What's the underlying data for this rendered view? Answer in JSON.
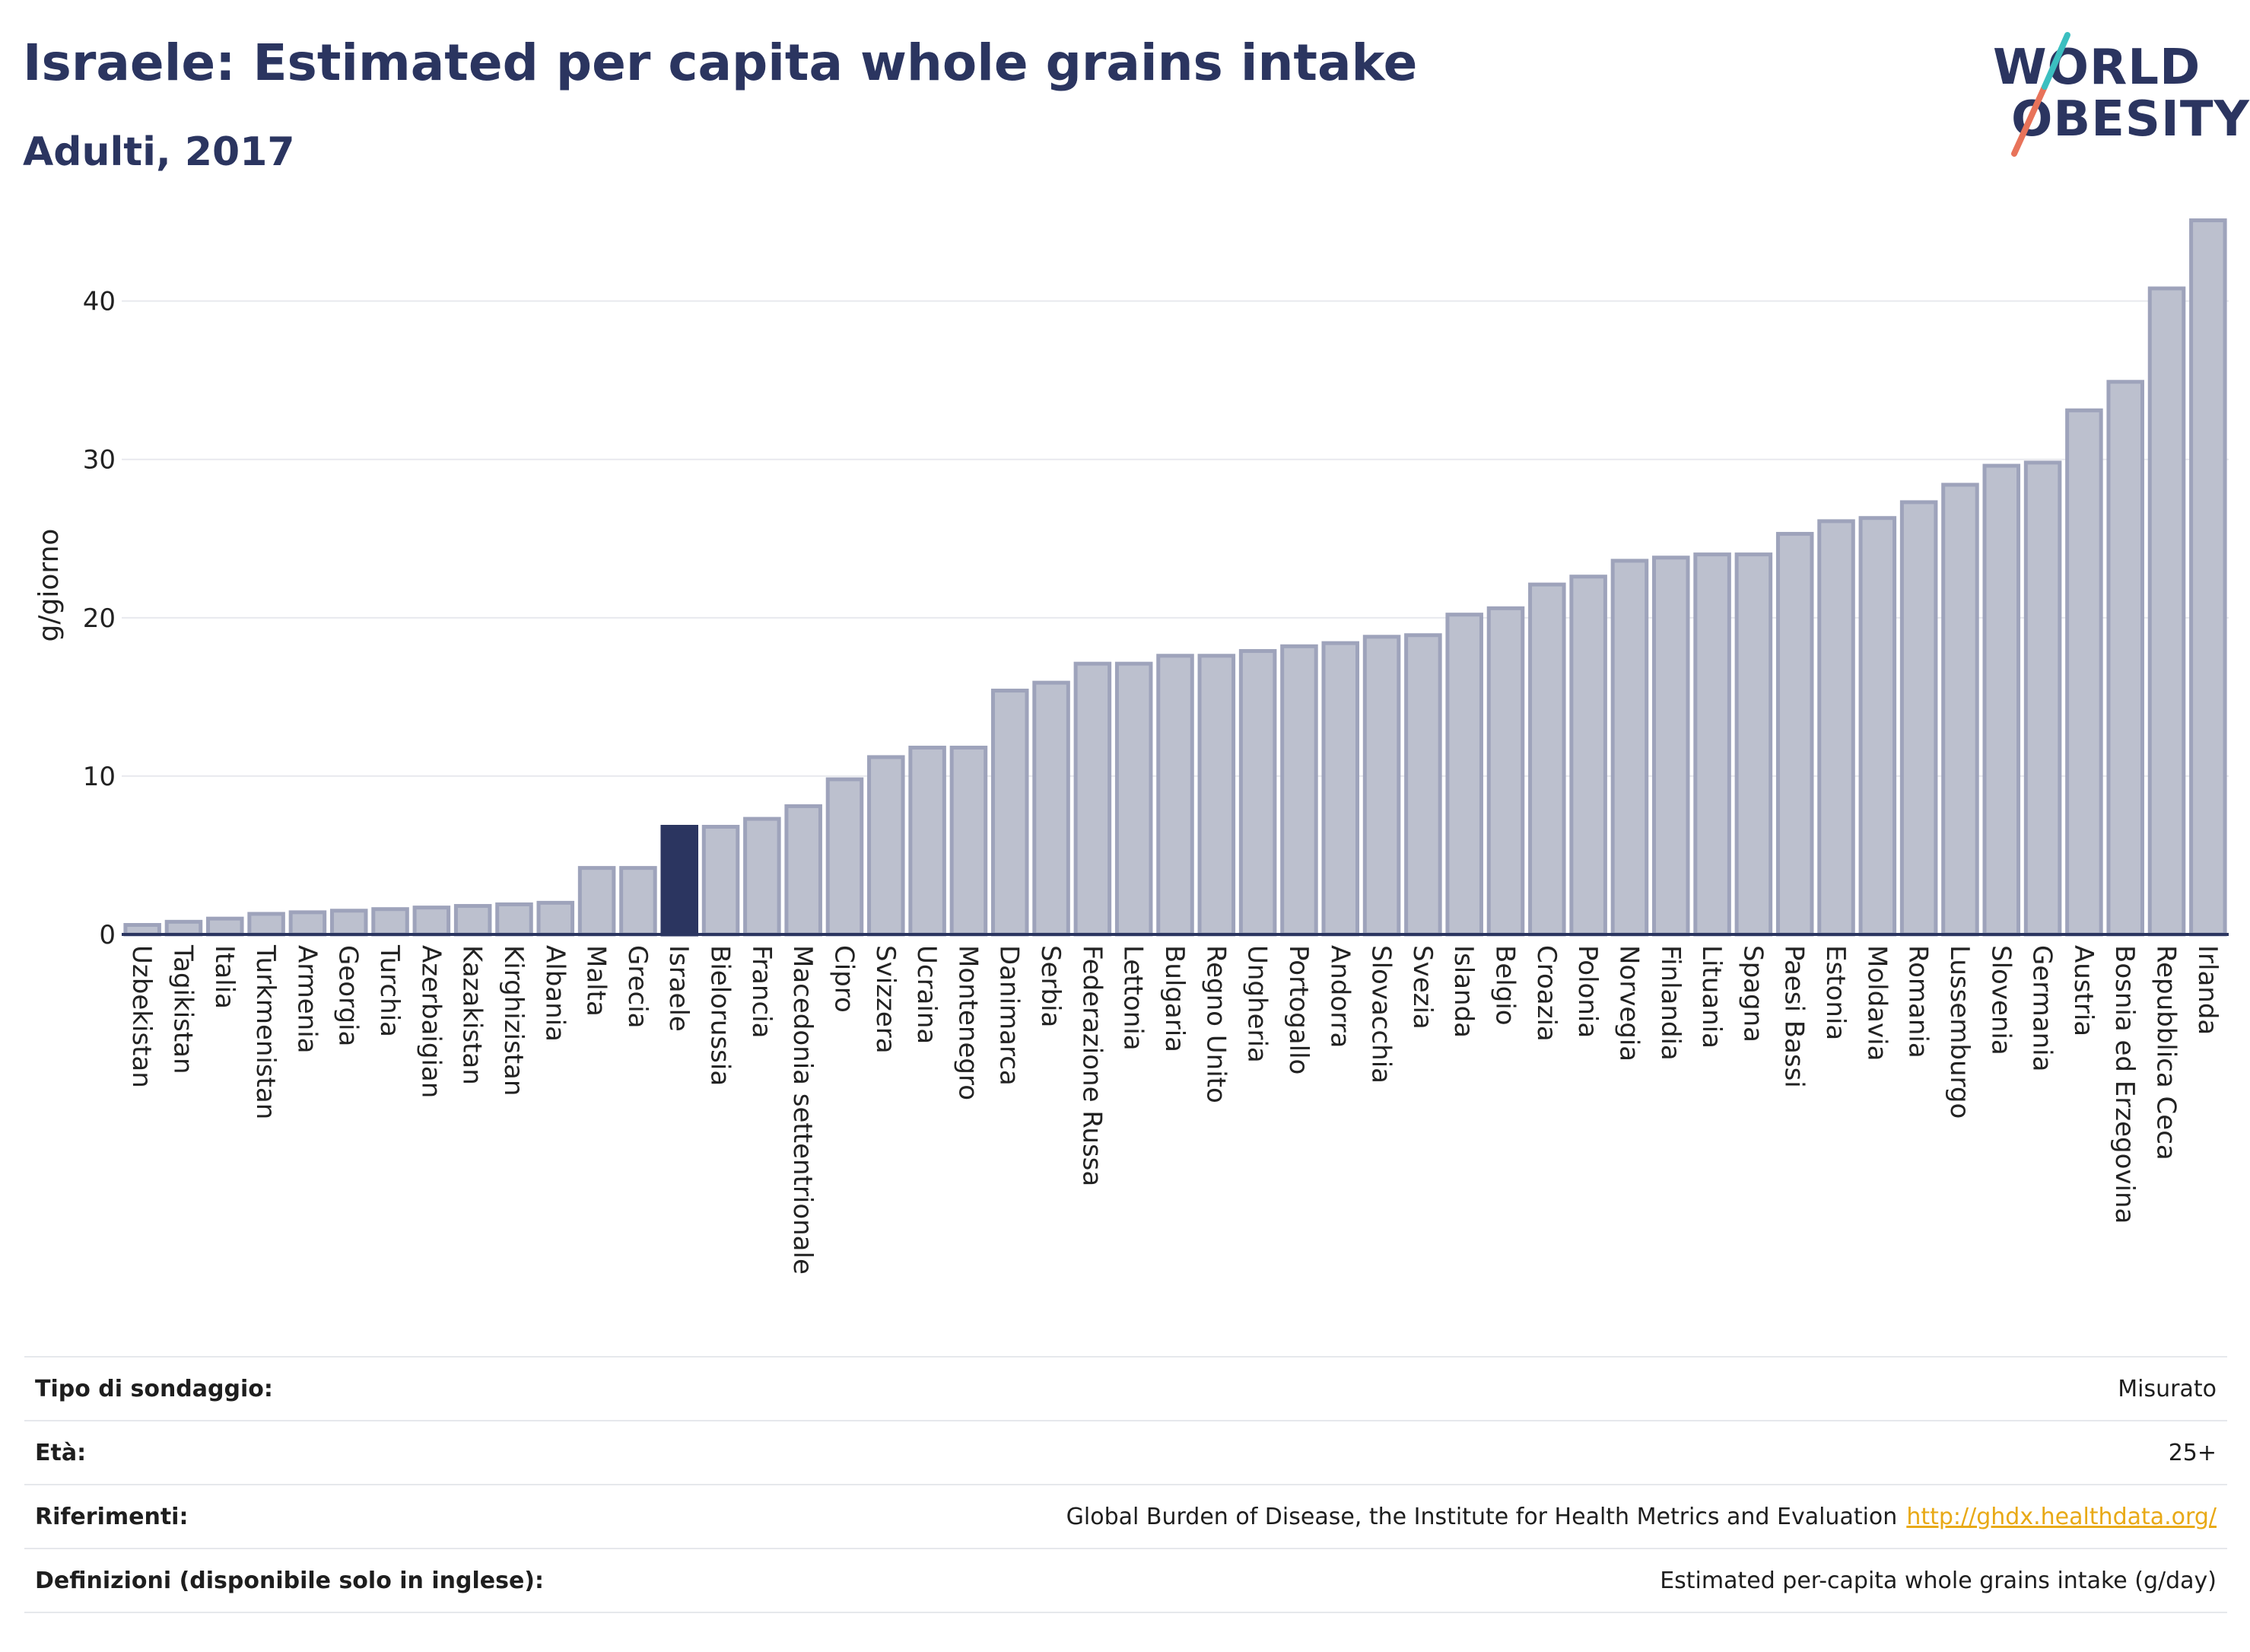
{
  "header": {
    "title": "Israele: Estimated per capita whole grains intake",
    "subtitle": "Adulti, 2017"
  },
  "logo": {
    "line1": "WORLD",
    "line2": "OBESITY",
    "accent_colors": [
      "#e8735a",
      "#3bbfc0"
    ]
  },
  "colors": {
    "bar_default": "#bcc0ce",
    "bar_border": "#9ea3bb",
    "bar_highlight": "#2b3560",
    "text": "#2b3560",
    "grid": "#e8e9ee",
    "link": "#e8a916"
  },
  "chart_data": {
    "type": "bar",
    "title": "Israele: Estimated per capita whole grains intake",
    "subtitle": "Adulti, 2017",
    "xlabel": "",
    "ylabel": "g/giorno",
    "ylim": [
      0,
      47
    ],
    "yticks": [
      0,
      10,
      20,
      30,
      40
    ],
    "grid": true,
    "highlight": "Israele",
    "categories": [
      "Uzbekistan",
      "Tagikistan",
      "Italia",
      "Turkmenistan",
      "Armenia",
      "Georgia",
      "Turchia",
      "Azerbaigian",
      "Kazakistan",
      "Kirghizistan",
      "Albania",
      "Malta",
      "Grecia",
      "Israele",
      "Bielorussia",
      "Francia",
      "Macedonia settentrionale",
      "Cipro",
      "Svizzera",
      "Ucraina",
      "Montenegro",
      "Danimarca",
      "Serbia",
      "Federazione Russa",
      "Lettonia",
      "Bulgaria",
      "Regno Unito",
      "Ungheria",
      "Portogallo",
      "Andorra",
      "Slovacchia",
      "Svezia",
      "Islanda",
      "Belgio",
      "Croazia",
      "Polonia",
      "Norvegia",
      "Finlandia",
      "Lituania",
      "Spagna",
      "Paesi Bassi",
      "Estonia",
      "Moldavia",
      "Romania",
      "Lussemburgo",
      "Slovenia",
      "Germania",
      "Austria",
      "Bosnia ed Erzegovina",
      "Repubblica Ceca",
      "Irlanda"
    ],
    "values": [
      0.6,
      0.8,
      1.0,
      1.3,
      1.4,
      1.5,
      1.6,
      1.7,
      1.8,
      1.9,
      2.0,
      4.2,
      4.2,
      6.8,
      6.8,
      7.3,
      8.1,
      9.8,
      11.2,
      11.8,
      11.8,
      15.4,
      15.9,
      17.1,
      17.1,
      17.6,
      17.6,
      17.9,
      18.2,
      18.4,
      18.8,
      18.9,
      20.2,
      20.6,
      22.1,
      22.6,
      23.6,
      23.8,
      24.0,
      24.0,
      25.3,
      26.1,
      26.3,
      27.3,
      28.4,
      29.6,
      29.8,
      33.1,
      34.9,
      40.8,
      45.1
    ]
  },
  "info": {
    "rows": [
      {
        "label": "Tipo di sondaggio:",
        "value": "Misurato"
      },
      {
        "label": "Età:",
        "value": "25+"
      },
      {
        "label": "Riferimenti:",
        "value": "Global Burden of Disease, the Institute for Health Metrics and Evaluation",
        "link": "http://ghdx.healthdata.org/"
      },
      {
        "label": "Definizioni (disponibile solo in inglese):",
        "value": "Estimated per-capita whole grains intake (g/day)"
      }
    ]
  }
}
